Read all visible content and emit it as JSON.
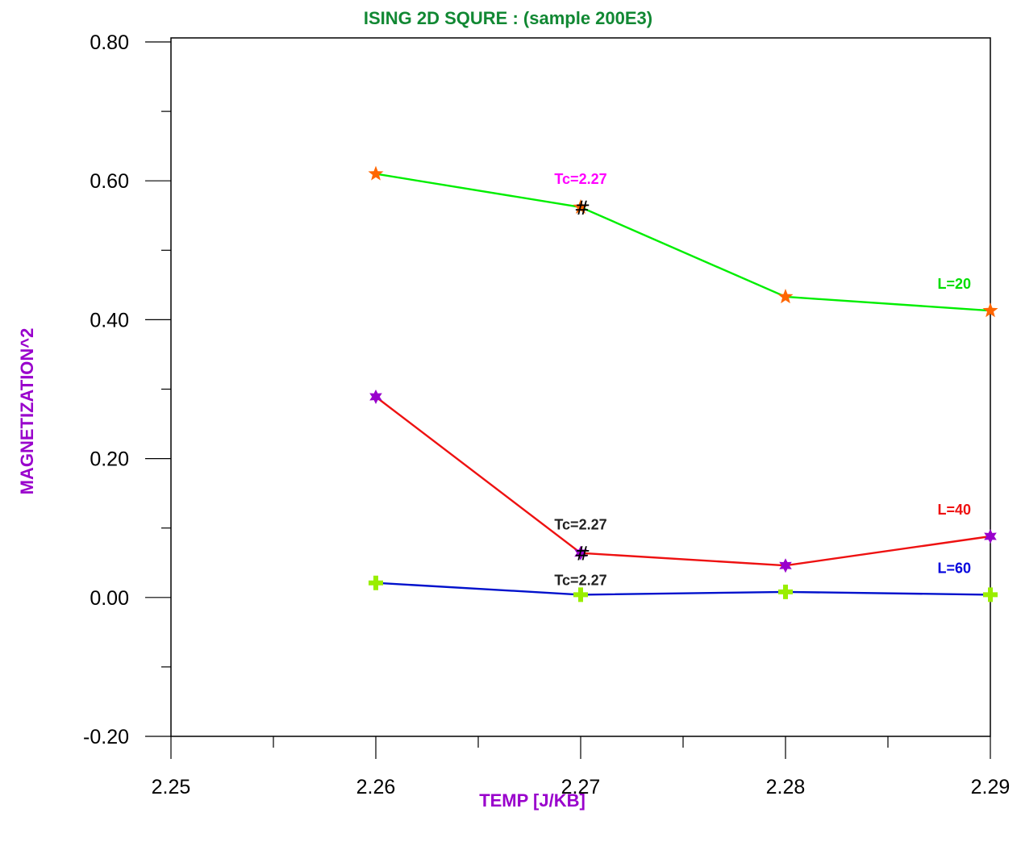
{
  "chart_data": {
    "type": "line",
    "title": "ISING 2D SQURE : (sample 200E3)",
    "xlabel": "TEMP [J/KB]",
    "ylabel": "MAGNETIZATION^2",
    "xlim": [
      2.25,
      2.29
    ],
    "ylim": [
      -0.2,
      0.8
    ],
    "x_ticks": [
      "2.25",
      "2.26",
      "2.27",
      "2.28",
      "2.29"
    ],
    "y_ticks": [
      "-0.20",
      "0.00",
      "0.20",
      "0.40",
      "0.60",
      "0.80"
    ],
    "grid": false,
    "x": [
      2.26,
      2.27,
      2.28,
      2.29
    ],
    "series": [
      {
        "name": "L=20",
        "values": [
          0.61,
          0.562,
          0.433,
          0.413
        ],
        "line_color": "#00ee00",
        "marker": "star5",
        "marker_color": "#ff6600",
        "label_color": "#00dd00"
      },
      {
        "name": "L=40",
        "values": [
          0.289,
          0.064,
          0.046,
          0.088
        ],
        "line_color": "#ee1111",
        "marker": "star6",
        "marker_color": "#9900cc",
        "label_color": "#ee1111"
      },
      {
        "name": "L=60",
        "values": [
          0.021,
          0.004,
          0.008,
          0.004
        ],
        "line_color": "#0011cc",
        "marker": "plus",
        "marker_color": "#99ee00",
        "label_color": "#0000dd"
      }
    ],
    "annotations": [
      {
        "text": "Tc=2.27",
        "x": 2.27,
        "y": 0.562,
        "color": "#ff00ff"
      },
      {
        "text": "Tc=2.27",
        "x": 2.27,
        "y": 0.064,
        "color": "#222222"
      },
      {
        "text": "Tc=2.27",
        "x": 2.27,
        "y": 0.004,
        "color": "#222222"
      }
    ],
    "marker_glyph": "#",
    "colors": {
      "title": "#118833",
      "axis_title": "#9900cc"
    }
  }
}
